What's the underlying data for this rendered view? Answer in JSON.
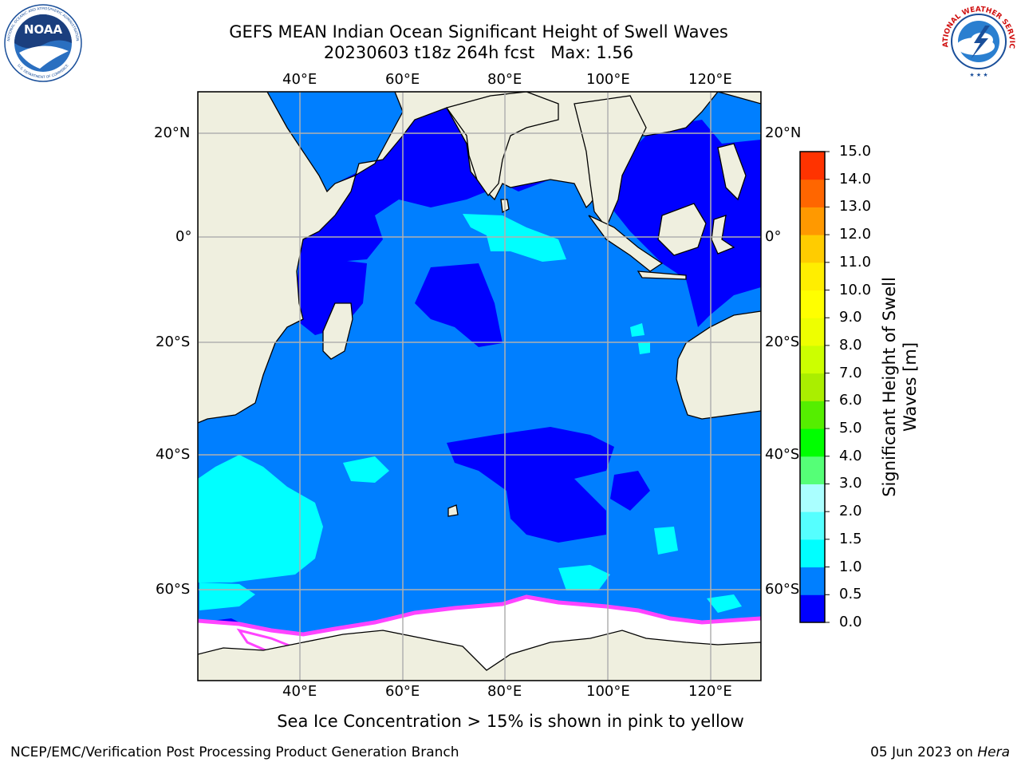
{
  "title_line1": "GEFS MEAN Indian Ocean Significant Height of Swell Waves",
  "title_line2": "20230603 t18z 264h fcst   Max: 1.56",
  "logo_left_text": "NOAA",
  "logo_left_ring_top": "NATIONAL OCEANIC AND ATMOSPHERIC ADMINISTRATION",
  "logo_left_ring_bottom": "U.S. DEPARTMENT OF COMMERCE",
  "logo_right_ring": "NATIONAL WEATHER SERVICE",
  "map": {
    "lon_ticks": [
      "40°E",
      "60°E",
      "80°E",
      "100°E",
      "120°E"
    ],
    "lat_ticks": [
      "20°N",
      "0°",
      "20°S",
      "40°S",
      "60°S"
    ]
  },
  "colorbar": {
    "title_line1": "Significant Height of Swell",
    "title_line2": "Waves [m]",
    "levels": [
      "0.0",
      "0.5",
      "1.0",
      "1.5",
      "2.0",
      "3.0",
      "4.0",
      "5.0",
      "6.0",
      "7.0",
      "8.0",
      "9.0",
      "10.0",
      "11.0",
      "12.0",
      "13.0",
      "14.0",
      "15.0"
    ],
    "colors": [
      "#0000ff",
      "#007fff",
      "#00ffff",
      "#55ffff",
      "#aaffff",
      "#55ff77",
      "#00ff00",
      "#55ee00",
      "#aaee00",
      "#ccff00",
      "#eeff00",
      "#ffff00",
      "#ffee00",
      "#ffcc00",
      "#ff9900",
      "#ff6600",
      "#ff3300",
      "#ff0000"
    ]
  },
  "caption": "Sea Ice Concentration > 15% is shown in pink to yellow",
  "footer_left": "NCEP/EMC/Verification Post Processing Product Generation Branch",
  "footer_right_date": "05 Jun 2023 on ",
  "footer_right_host": "Hera"
}
